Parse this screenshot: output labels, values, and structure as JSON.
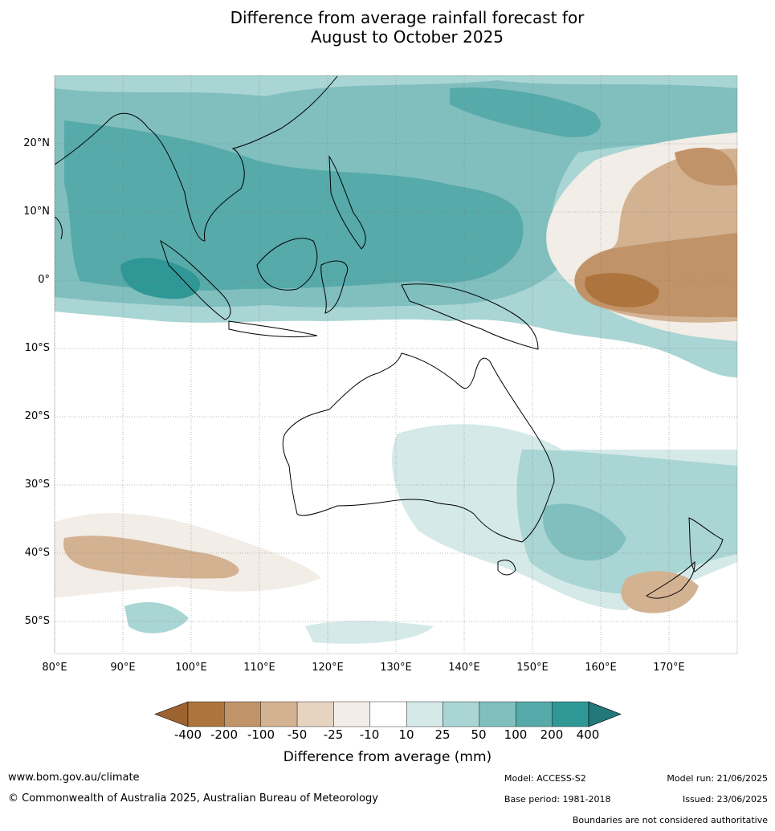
{
  "title_line1": "Difference from average rainfall forecast for",
  "title_line2": "August to October 2025",
  "lat_labels": [
    "20°N",
    "10°N",
    "0°",
    "10°S",
    "20°S",
    "30°S",
    "40°S",
    "50°S"
  ],
  "lon_labels": [
    "80°E",
    "90°E",
    "100°E",
    "110°E",
    "120°E",
    "130°E",
    "140°E",
    "150°E",
    "160°E",
    "170°E"
  ],
  "colorbar": {
    "labels": [
      "-400",
      "-200",
      "-100",
      "-50",
      "-25",
      "-10",
      "10",
      "25",
      "50",
      "100",
      "200",
      "400"
    ],
    "colors": [
      "#9c6230",
      "#ad743d",
      "#c19368",
      "#d3b292",
      "#e6d3c0",
      "#f2ede6",
      "#ffffff",
      "#d4e9e8",
      "#a9d5d4",
      "#80bfbe",
      "#56aaa9",
      "#2f9896",
      "#23787a"
    ],
    "title": "Difference from average (mm)"
  },
  "footer": {
    "website": "www.bom.gov.au/climate",
    "copyright": "© Commonwealth of Australia 2025, Australian Bureau of Meteorology",
    "model": "Model: ACCESS-S2",
    "base_period": "Base period: 1981-2018",
    "model_run": "Model run: 21/06/2025",
    "issued": "Issued: 23/06/2025",
    "disclaimer": "Boundaries are not considered authoritative"
  }
}
